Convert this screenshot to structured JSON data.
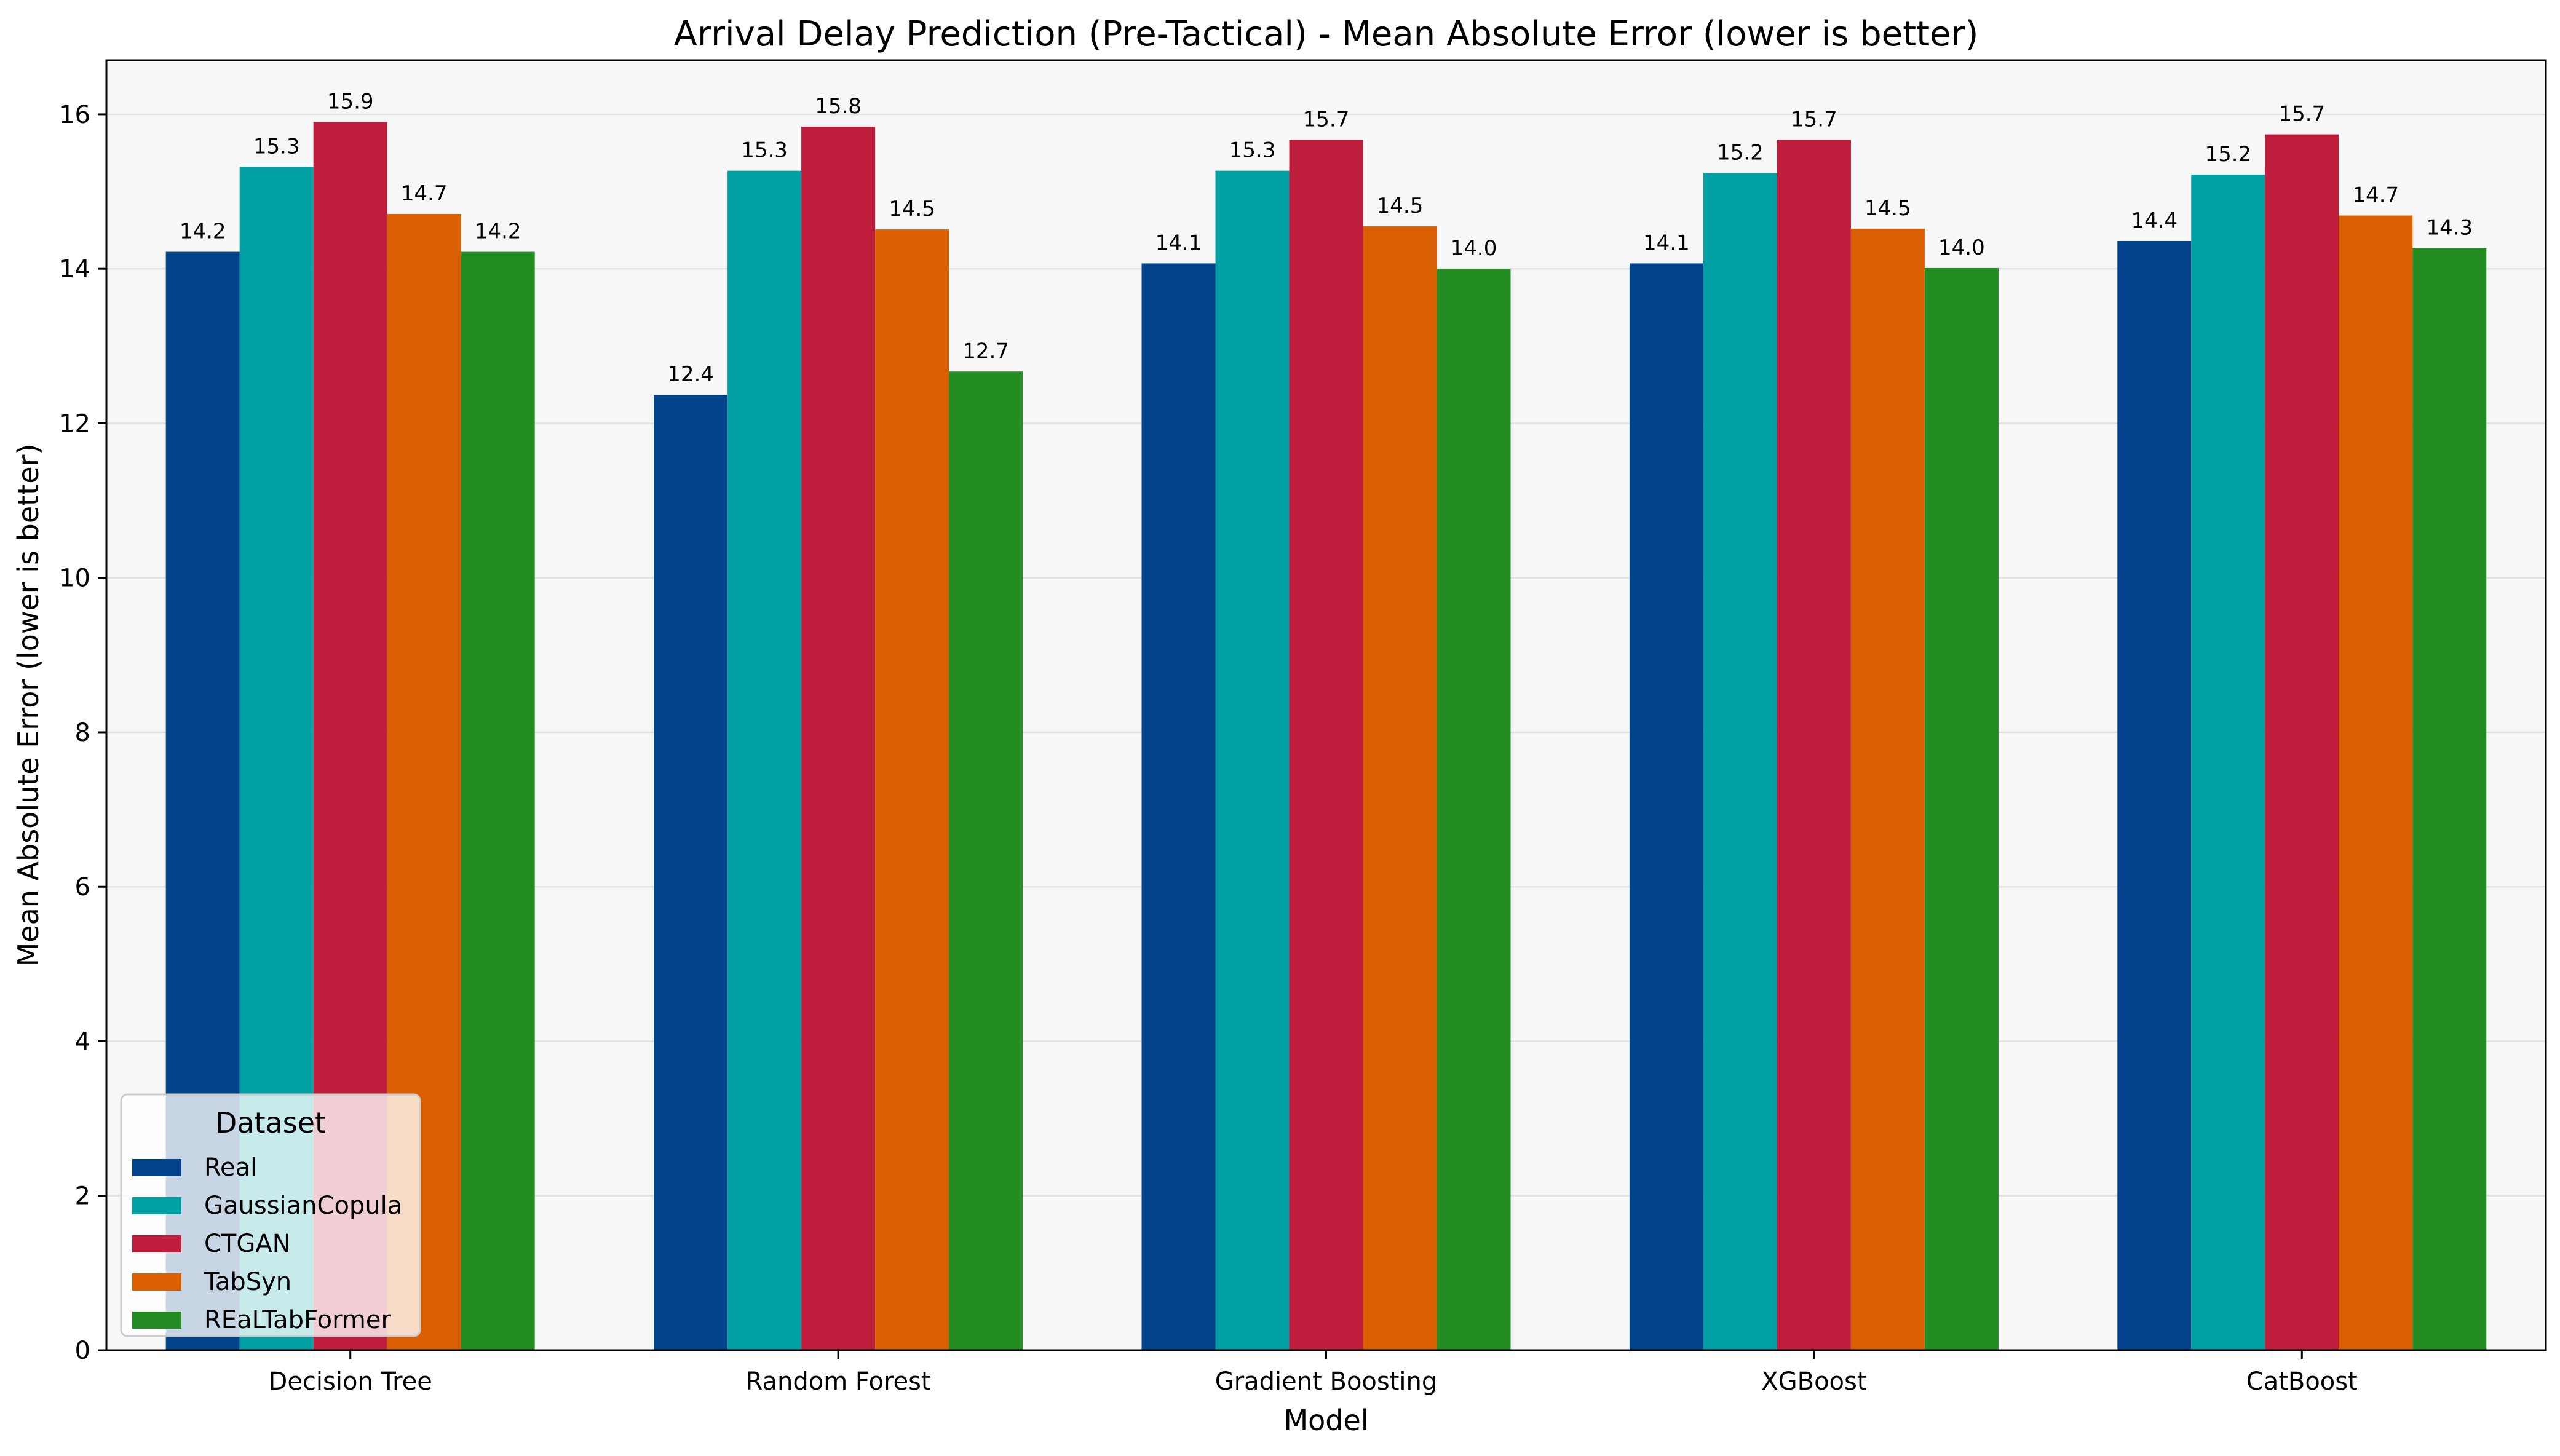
{
  "chart_data": {
    "type": "bar",
    "title": "Arrival Delay Prediction (Pre-Tactical) - Mean Absolute Error (lower is better)",
    "xlabel": "Model",
    "ylabel": "Mean Absolute Error (lower is better)",
    "categories": [
      "Decision Tree",
      "Random Forest",
      "Gradient Boosting",
      "XGBoost",
      "CatBoost"
    ],
    "series": [
      {
        "name": "Real",
        "color": "#00438A",
        "values": [
          14.22,
          12.37,
          14.07,
          14.07,
          14.36
        ],
        "labels": [
          "14.2",
          "12.4",
          "14.1",
          "14.1",
          "14.4"
        ]
      },
      {
        "name": "GaussianCopula",
        "color": "#00A0A4",
        "values": [
          15.32,
          15.27,
          15.27,
          15.24,
          15.22
        ],
        "labels": [
          "15.3",
          "15.3",
          "15.3",
          "15.2",
          "15.2"
        ]
      },
      {
        "name": "CTGAN",
        "color": "#BE1E3C",
        "values": [
          15.9,
          15.84,
          15.67,
          15.67,
          15.74
        ],
        "labels": [
          "15.9",
          "15.8",
          "15.7",
          "15.7",
          "15.7"
        ]
      },
      {
        "name": "TabSyn",
        "color": "#D95F02",
        "values": [
          14.71,
          14.51,
          14.55,
          14.52,
          14.69
        ],
        "labels": [
          "14.7",
          "14.5",
          "14.5",
          "14.5",
          "14.7"
        ]
      },
      {
        "name": "REaLTabFormer",
        "color": "#228B22",
        "values": [
          14.22,
          12.67,
          14.0,
          14.01,
          14.27
        ],
        "labels": [
          "14.2",
          "12.7",
          "14.0",
          "14.0",
          "14.3"
        ]
      }
    ],
    "ylim": [
      0,
      16.7
    ],
    "yticks": [
      0,
      2,
      4,
      6,
      8,
      10,
      12,
      14,
      16
    ],
    "grid": "y",
    "legend": {
      "title": "Dataset",
      "placement": "lower-left"
    },
    "colors": {
      "plot_background": "#F7F7F7",
      "grid": "#E2E2E2"
    }
  }
}
